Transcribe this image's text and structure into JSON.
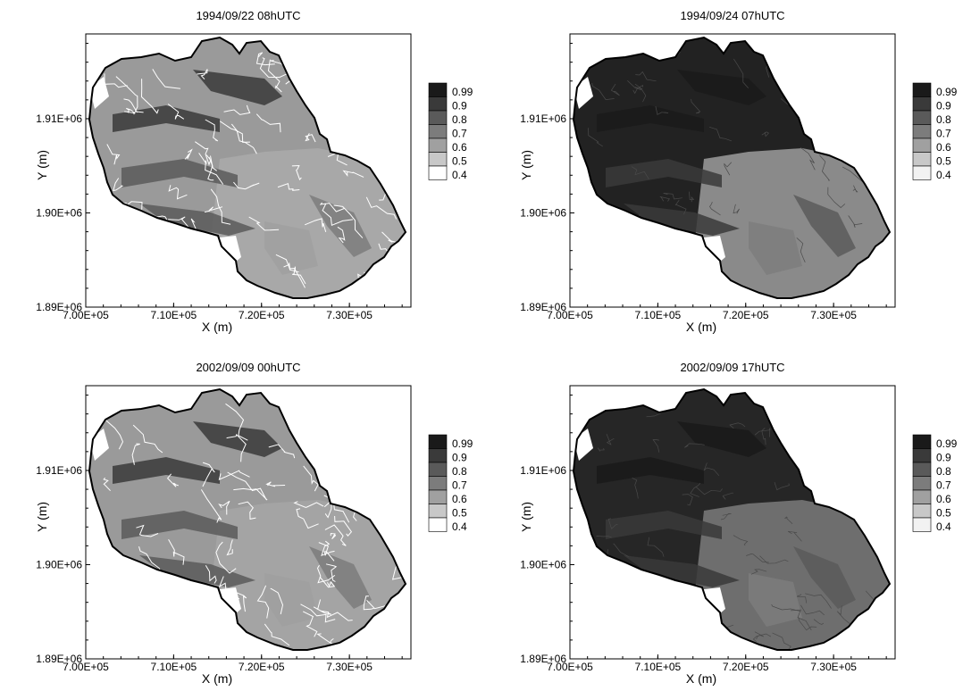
{
  "panels": [
    {
      "title": "1994/09/22 08hUTC",
      "xlabel": "X (m)",
      "ylabel": "Y (m)",
      "xticks": [
        "7.00E+05",
        "7.10E+05",
        "7.20E+05",
        "7.30E+05"
      ],
      "yticks": [
        "1.89E+06",
        "1.90E+06",
        "1.91E+06"
      ],
      "xlim": [
        700000,
        737000
      ],
      "ylim": [
        1890000,
        1919000
      ],
      "legend_levels": [
        "0.99",
        "0.9",
        "0.8",
        "0.7",
        "0.6",
        "0.5",
        "0.4"
      ],
      "legend_colors": [
        "#1a1a1a",
        "#3a3a3a",
        "#5a5a5a",
        "#7c7c7c",
        "#a0a0a0",
        "#c8c8c8",
        "#ffffff"
      ],
      "region_fills": {
        "north": "#9a9a9a",
        "south": "#a8a8a8"
      },
      "streams": true
    },
    {
      "title": "1994/09/24 07hUTC",
      "xlabel": "X (m)",
      "ylabel": "Y (m)",
      "xticks": [
        "7.00E+05",
        "7.10E+05",
        "7.20E+05",
        "7.30E+05"
      ],
      "yticks": [
        "1.89E+06",
        "1.90E+06",
        "1.91E+06"
      ],
      "xlim": [
        700000,
        737000
      ],
      "ylim": [
        1890000,
        1919000
      ],
      "legend_levels": [
        "0.99",
        "0.9",
        "0.8",
        "0.7",
        "0.6",
        "0.5",
        "0.4"
      ],
      "legend_colors": [
        "#1a1a1a",
        "#3a3a3a",
        "#5a5a5a",
        "#7c7c7c",
        "#a0a0a0",
        "#c8c8c8",
        "#f2f2f2"
      ],
      "region_fills": {
        "north": "#222222",
        "south": "#8a8a8a"
      },
      "streams": false
    },
    {
      "title": "2002/09/09 00hUTC",
      "xlabel": "X (m)",
      "ylabel": "Y (m)",
      "xticks": [
        "7.00E+05",
        "7.10E+05",
        "7.20E+05",
        "7.30E+05"
      ],
      "yticks": [
        "1.89E+06",
        "1.90E+06",
        "1.91E+06"
      ],
      "xlim": [
        700000,
        737000
      ],
      "ylim": [
        1890000,
        1919000
      ],
      "legend_levels": [
        "0.99",
        "0.9",
        "0.8",
        "0.7",
        "0.6",
        "0.5",
        "0.4"
      ],
      "legend_colors": [
        "#1a1a1a",
        "#3a3a3a",
        "#5a5a5a",
        "#7c7c7c",
        "#a0a0a0",
        "#c8c8c8",
        "#ffffff"
      ],
      "region_fills": {
        "north": "#9a9a9a",
        "south": "#a4a4a4"
      },
      "streams": true
    },
    {
      "title": "2002/09/09 17hUTC",
      "xlabel": "X (m)",
      "ylabel": "Y (m)",
      "xticks": [
        "7.00E+05",
        "7.10E+05",
        "7.20E+05",
        "7.30E+05"
      ],
      "yticks": [
        "1.89E+06",
        "1.90E+06",
        "1.91E+06"
      ],
      "xlim": [
        700000,
        737000
      ],
      "ylim": [
        1890000,
        1919000
      ],
      "legend_levels": [
        "0.99",
        "0.9",
        "0.8",
        "0.7",
        "0.6",
        "0.5",
        "0.4"
      ],
      "legend_colors": [
        "#1a1a1a",
        "#3a3a3a",
        "#5a5a5a",
        "#7c7c7c",
        "#a0a0a0",
        "#c8c8c8",
        "#f2f2f2"
      ],
      "region_fills": {
        "north": "#262626",
        "south": "#6e6e6e"
      },
      "streams": false
    }
  ]
}
